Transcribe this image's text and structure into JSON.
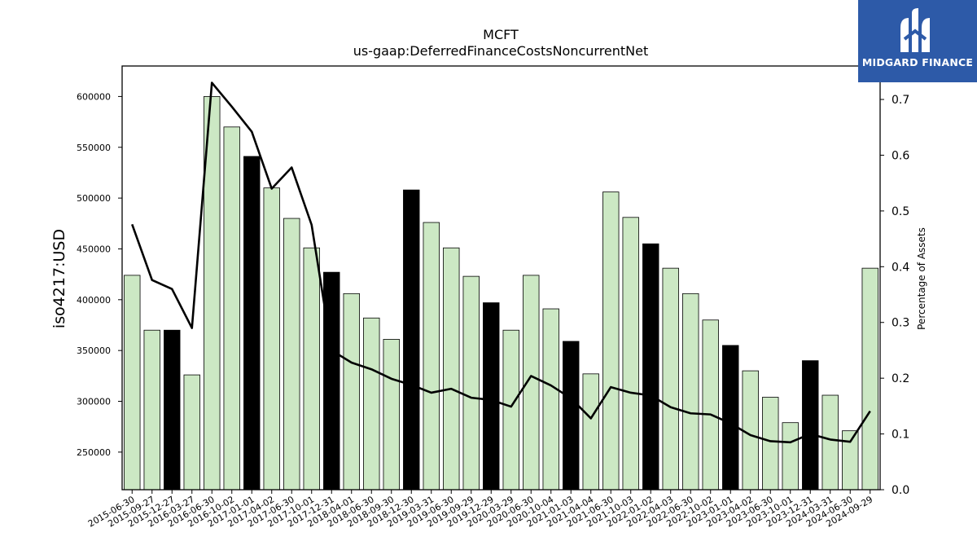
{
  "chart_data": {
    "type": "bar",
    "title": "MCFT",
    "subtitle": "us-gaap:DeferredFinanceCostsNoncurrentNet",
    "ylabel": "iso4217:USD",
    "y2label": "Percentage of Assets",
    "ylim": [
      213000,
      630000
    ],
    "y2lim": [
      0.0,
      0.76
    ],
    "yticks": [
      250000,
      300000,
      350000,
      400000,
      450000,
      500000,
      550000,
      600000
    ],
    "y2ticks": [
      0.0,
      0.1,
      0.2,
      0.3,
      0.4,
      0.5,
      0.6,
      0.7
    ],
    "categories": [
      "2015-06-30",
      "2015-09-27",
      "2015-12-27",
      "2016-03-27",
      "2016-06-30",
      "2016-10-02",
      "2017-01-01",
      "2017-04-02",
      "2017-06-30",
      "2017-10-01",
      "2017-12-31",
      "2018-04-01",
      "2018-06-30",
      "2018-09-30",
      "2018-12-30",
      "2019-03-31",
      "2019-06-30",
      "2019-09-29",
      "2019-12-29",
      "2020-03-29",
      "2020-06-30",
      "2020-10-04",
      "2021-01-03",
      "2021-04-04",
      "2021-06-30",
      "2021-10-03",
      "2022-01-02",
      "2022-04-03",
      "2022-06-30",
      "2022-10-02",
      "2023-01-01",
      "2023-04-02",
      "2023-06-30",
      "2023-10-01",
      "2023-12-31",
      "2024-03-31",
      "2024-06-30",
      "2024-09-29"
    ],
    "series": [
      {
        "values": [
          424000,
          370000,
          370000,
          326000,
          600000,
          570000,
          541000,
          510000,
          480000,
          451000,
          427000,
          406000,
          382000,
          361000,
          508000,
          476000,
          451000,
          423000,
          397000,
          370000,
          424000,
          391000,
          359000,
          327000,
          506000,
          481000,
          455000,
          431000,
          406000,
          380000,
          355000,
          330000,
          304000,
          279000,
          340000,
          306000,
          271000,
          431000
        ],
        "highlight": [
          false,
          false,
          true,
          false,
          false,
          false,
          true,
          false,
          false,
          false,
          true,
          false,
          false,
          false,
          true,
          false,
          false,
          false,
          true,
          false,
          false,
          false,
          true,
          false,
          false,
          false,
          true,
          false,
          false,
          false,
          true,
          false,
          false,
          false,
          true,
          false,
          false,
          false
        ]
      },
      {
        "values": [
          0.476,
          0.376,
          0.36,
          0.29,
          0.73,
          0.687,
          0.642,
          0.54,
          0.578,
          0.475,
          0.25,
          0.228,
          0.216,
          0.199,
          0.188,
          0.174,
          0.181,
          0.165,
          0.161,
          0.149,
          0.204,
          0.187,
          0.164,
          0.128,
          0.184,
          0.174,
          0.169,
          0.148,
          0.137,
          0.135,
          0.119,
          0.098,
          0.087,
          0.085,
          0.1,
          0.09,
          0.086,
          0.141
        ]
      }
    ],
    "colors": {
      "bar": "#cce8c4",
      "bar_highlight": "#000000",
      "line": "#000000"
    }
  },
  "logo": {
    "text": "MIDGARD FINANCE",
    "color": "#2d5aa8"
  }
}
